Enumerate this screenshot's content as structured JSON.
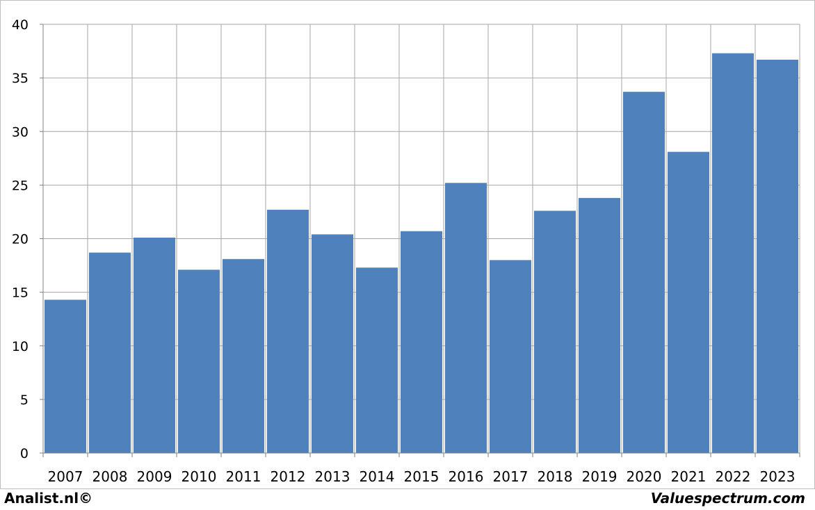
{
  "chart_data": {
    "type": "bar",
    "categories": [
      "2007",
      "2008",
      "2009",
      "2010",
      "2011",
      "2012",
      "2013",
      "2014",
      "2015",
      "2016",
      "2017",
      "2018",
      "2019",
      "2020",
      "2021",
      "2022",
      "2023"
    ],
    "values": [
      14.3,
      18.7,
      20.1,
      17.1,
      18.1,
      22.7,
      20.4,
      17.3,
      20.7,
      25.2,
      18.0,
      22.6,
      23.8,
      33.7,
      28.1,
      37.3,
      36.7
    ],
    "yticks": [
      0,
      5,
      10,
      15,
      20,
      25,
      30,
      35,
      40
    ],
    "ylim": [
      0,
      40
    ],
    "title": "",
    "xlabel": "",
    "ylabel": "",
    "grid": true,
    "bar_color": "#4f81bd"
  },
  "footer": {
    "left_brand": "Analist.nl©",
    "right_brand": "Valuespectrum.com"
  }
}
